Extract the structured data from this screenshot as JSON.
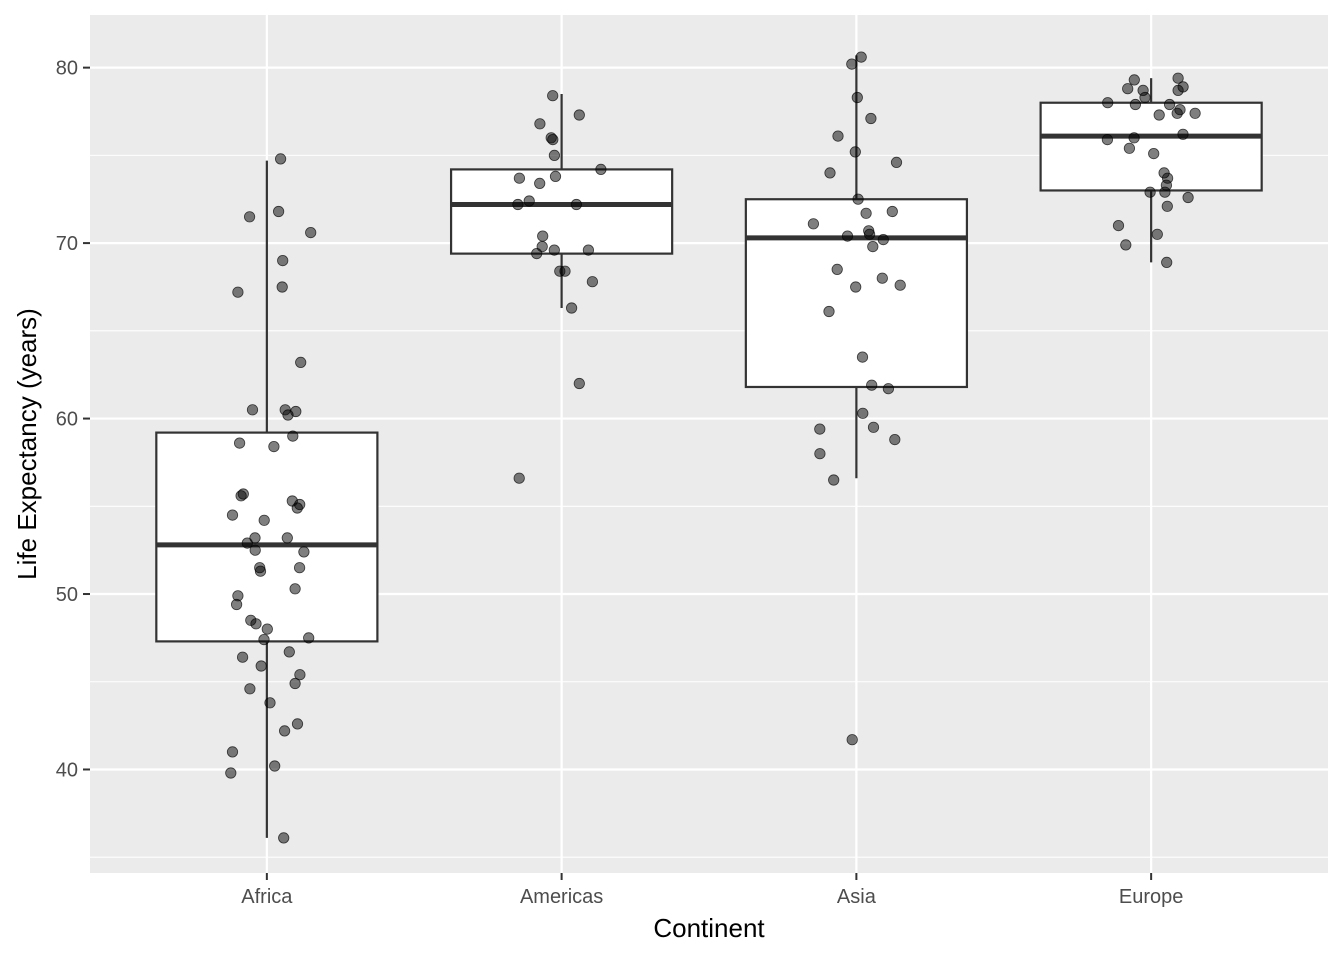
{
  "chart_data": {
    "type": "boxplot",
    "title": "",
    "xlabel": "Continent",
    "ylabel": "Life Expectancy (years)",
    "categories": [
      "Africa",
      "Americas",
      "Asia",
      "Europe"
    ],
    "ylim": [
      34.1,
      83.0
    ],
    "yticks": [
      40,
      50,
      60,
      70,
      80
    ],
    "grid": true,
    "legend": "none",
    "colors": {
      "panel": "#ebebeb",
      "grid": "#ffffff",
      "box_fill": "#ffffff",
      "box_line": "#333333",
      "point": "#000000",
      "tick_text": "#4d4d4d"
    },
    "boxes": [
      {
        "category": "Africa",
        "min": 36.1,
        "q1": 47.3,
        "median": 52.8,
        "q3": 59.2,
        "max": 74.7
      },
      {
        "category": "Americas",
        "min": 66.3,
        "q1": 69.4,
        "median": 72.2,
        "q3": 74.2,
        "max": 78.5
      },
      {
        "category": "Asia",
        "min": 56.6,
        "q1": 61.8,
        "median": 70.3,
        "q3": 72.5,
        "max": 80.7
      },
      {
        "category": "Europe",
        "min": 68.9,
        "q1": 73.0,
        "median": 76.1,
        "q3": 78.0,
        "max": 79.4
      }
    ],
    "points": [
      {
        "category": "Africa",
        "values": [
          74.8,
          71.5,
          71.8,
          70.6,
          69.0,
          67.5,
          67.2,
          63.2,
          60.5,
          60.4,
          60.2,
          60.5,
          59.0,
          58.6,
          58.4,
          55.7,
          55.6,
          55.3,
          55.1,
          54.9,
          54.5,
          54.2,
          53.2,
          53.2,
          52.9,
          52.5,
          52.4,
          51.5,
          51.5,
          51.3,
          50.3,
          49.9,
          49.4,
          48.5,
          48.3,
          48.0,
          47.5,
          47.4,
          46.7,
          46.4,
          45.9,
          45.4,
          44.9,
          44.6,
          43.8,
          42.6,
          42.2,
          41.0,
          40.2,
          39.8,
          36.1
        ]
      },
      {
        "category": "Americas",
        "values": [
          78.4,
          77.3,
          76.8,
          76.0,
          75.9,
          75.0,
          74.2,
          73.8,
          73.7,
          73.4,
          72.4,
          72.2,
          72.2,
          70.4,
          69.8,
          69.6,
          69.4,
          69.6,
          68.4,
          68.4,
          67.8,
          66.3,
          62.0,
          56.6
        ]
      },
      {
        "category": "Asia",
        "values": [
          80.6,
          80.2,
          78.3,
          77.1,
          76.1,
          75.2,
          74.6,
          74.0,
          72.5,
          71.8,
          71.7,
          71.1,
          70.7,
          70.5,
          70.4,
          70.2,
          69.8,
          68.5,
          68.0,
          67.6,
          67.5,
          66.1,
          63.5,
          61.9,
          61.7,
          60.3,
          59.5,
          59.4,
          58.8,
          58.0,
          56.5,
          41.7
        ]
      },
      {
        "category": "Europe",
        "values": [
          79.4,
          79.3,
          78.9,
          78.8,
          78.7,
          78.7,
          78.3,
          78.0,
          77.9,
          77.9,
          77.6,
          77.4,
          77.4,
          77.3,
          76.2,
          76.0,
          75.9,
          75.4,
          75.1,
          74.0,
          73.7,
          73.3,
          72.9,
          72.9,
          72.6,
          72.1,
          71.0,
          70.5,
          69.9,
          68.9
        ]
      }
    ]
  }
}
